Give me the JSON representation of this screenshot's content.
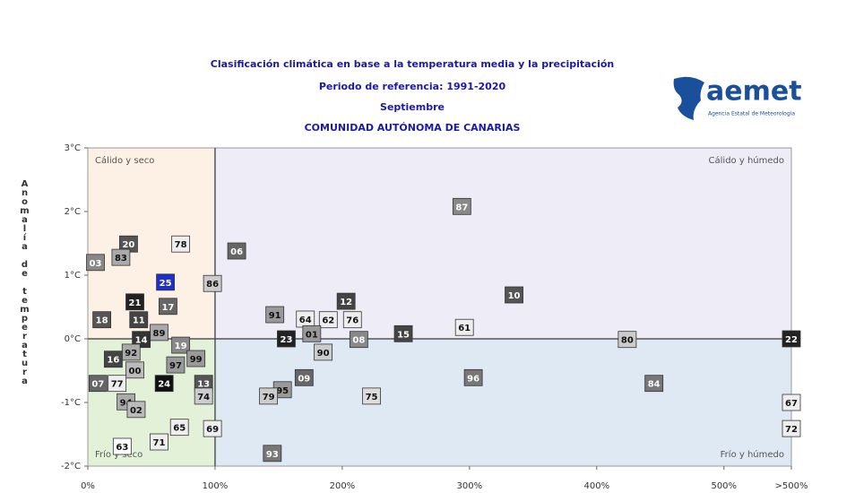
{
  "chart_data": {
    "type": "scatter",
    "title": "Clasificación climática en base a la temperatura media y la precipitación",
    "subtitle": "Periodo de referencia: 1991-2020",
    "period": "Septiembre",
    "region": "COMUNIDAD AUTÓNOMA DE CANARIAS",
    "y_label": "Anomalía de temperatura",
    "logo": {
      "name": "aemet",
      "caption": "Agencia Estatal de Meteorología"
    },
    "quadrant_labels": {
      "top_left": "Cálido y seco",
      "top_right": "Cálido y húmedo",
      "bottom_left": "Frío y seco",
      "bottom_right": "Frío y húmedo"
    },
    "quadrant_colors": {
      "top_left": "#fdf1e5",
      "top_right": "#eeecf6",
      "bottom_left": "#e3f1d9",
      "bottom_right": "#dfe9f4"
    },
    "xlim": [
      0,
      553
    ],
    "xticks": [
      {
        "value": 0,
        "label": "0%"
      },
      {
        "value": 100,
        "label": "100%"
      },
      {
        "value": 200,
        "label": "200%"
      },
      {
        "value": 300,
        "label": "300%"
      },
      {
        "value": 400,
        "label": "400%"
      },
      {
        "value": 500,
        "label": "500%"
      },
      {
        "value": 553,
        "label": ">500%"
      }
    ],
    "ylim": [
      -2,
      3
    ],
    "yticks": [
      {
        "value": -2,
        "label": "-2°C"
      },
      {
        "value": -1,
        "label": "-1°C"
      },
      {
        "value": 0,
        "label": "0°C"
      },
      {
        "value": 1,
        "label": "1°C"
      },
      {
        "value": 2,
        "label": "2°C"
      },
      {
        "value": 3,
        "label": "3°C"
      }
    ],
    "x": [
      294,
      32,
      73,
      117,
      6,
      26,
      61,
      98,
      37,
      63,
      147,
      203,
      335,
      11,
      40,
      171,
      189,
      208,
      296,
      176,
      156,
      213,
      248,
      424,
      553,
      56,
      42,
      73,
      185,
      34,
      20,
      85,
      69,
      37,
      170,
      303,
      8,
      23,
      60,
      91,
      445,
      153,
      142,
      91,
      223,
      30,
      38,
      553,
      72,
      98,
      553,
      56,
      27,
      145
    ],
    "y": [
      2.08,
      1.49,
      1.49,
      1.38,
      1.2,
      1.28,
      0.89,
      0.87,
      0.58,
      0.51,
      0.38,
      0.59,
      0.69,
      0.3,
      0.3,
      0.31,
      0.3,
      0.3,
      0.18,
      0.08,
      0,
      -0.01,
      0.08,
      -0.01,
      0,
      0.1,
      -0.01,
      -0.1,
      -0.21,
      -0.21,
      -0.32,
      -0.31,
      -0.41,
      -0.49,
      -0.61,
      -0.61,
      -0.7,
      -0.7,
      -0.7,
      -0.7,
      -0.7,
      -0.8,
      -0.9,
      -0.9,
      -0.9,
      -0.99,
      -1.11,
      -1.0,
      -1.39,
      -1.41,
      -1.41,
      -1.62,
      -1.69,
      -1.8
    ],
    "point_labels": [
      "87",
      "20",
      "78",
      "06",
      "03",
      "83",
      "25",
      "86",
      "21",
      "17",
      "91",
      "12",
      "10",
      "18",
      "11",
      "64",
      "62",
      "76",
      "61",
      "01",
      "23",
      "08",
      "15",
      "80",
      "22",
      "89",
      "14",
      "19",
      "90",
      "92",
      "16",
      "99",
      "97",
      "00",
      "09",
      "96",
      "07",
      "77",
      "24",
      "13",
      "84",
      "95",
      "79",
      "74",
      "75",
      "94",
      "02",
      "67",
      "65",
      "69",
      "72",
      "71",
      "63",
      "93"
    ],
    "point_colors": [
      "#888888",
      "#555555",
      "#eeeeee",
      "#666666",
      "#888888",
      "#aaaaaa",
      "#1f2fcc",
      "#cccccc",
      "#222222",
      "#666666",
      "#999999",
      "#444444",
      "#555555",
      "#555555",
      "#444444",
      "#eeeeee",
      "#eeeeee",
      "#eeeeee",
      "#eeeeee",
      "#999999",
      "#222222",
      "#888888",
      "#444444",
      "#cccccc",
      "#222222",
      "#aaaaaa",
      "#333333",
      "#888888",
      "#cccccc",
      "#aaaaaa",
      "#444444",
      "#999999",
      "#999999",
      "#bbbbbb",
      "#666666",
      "#777777",
      "#666666",
      "#eeeeee",
      "#111111",
      "#555555",
      "#777777",
      "#999999",
      "#cccccc",
      "#cccccc",
      "#dddddd",
      "#aaaaaa",
      "#bbbbbb",
      "#eeeeee",
      "#eeeeee",
      "#eeeeee",
      "#eeeeee",
      "#eeeeee",
      "#ffffff",
      "#777777"
    ]
  }
}
